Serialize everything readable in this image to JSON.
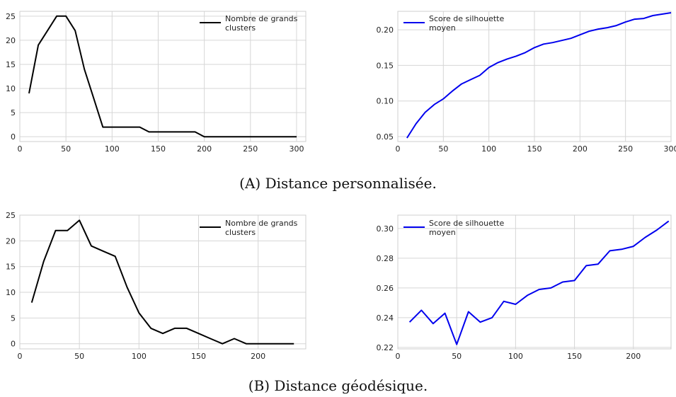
{
  "captions": {
    "a": {
      "tag": "(A)",
      "text": " Distance personnalisée."
    },
    "b": {
      "tag": "(B)",
      "text": " Distance géodésique."
    }
  },
  "chart_data": [
    {
      "type": "line",
      "panel": "A-left",
      "x": [
        10,
        20,
        30,
        40,
        50,
        60,
        70,
        80,
        90,
        100,
        110,
        120,
        130,
        140,
        150,
        160,
        170,
        180,
        190,
        200,
        210,
        220,
        230,
        240,
        250,
        260,
        270,
        280,
        290,
        300
      ],
      "series": [
        {
          "name": "Nombre de grands clusters",
          "color": "#000000",
          "values": [
            9,
            19,
            22,
            25,
            25,
            22,
            14,
            8,
            2,
            2,
            2,
            2,
            2,
            1,
            1,
            1,
            1,
            1,
            1,
            0,
            0,
            0,
            0,
            0,
            0,
            0,
            0,
            0,
            0,
            0
          ]
        }
      ],
      "xlim": [
        0,
        310
      ],
      "ylim": [
        -1,
        26
      ],
      "xticks": [
        0,
        50,
        100,
        150,
        200,
        250,
        300
      ],
      "yticks": [
        0,
        5,
        10,
        15,
        20,
        25
      ],
      "ytick_decimals": 0,
      "legend": "top-right",
      "grid": true
    },
    {
      "type": "line",
      "panel": "A-right",
      "x": [
        10,
        20,
        30,
        40,
        50,
        60,
        70,
        80,
        90,
        100,
        110,
        120,
        130,
        140,
        150,
        160,
        170,
        180,
        190,
        200,
        210,
        220,
        230,
        240,
        250,
        260,
        270,
        280,
        290,
        300
      ],
      "series": [
        {
          "name": "Score de silhouette moyen",
          "color": "#0000ee",
          "values": [
            0.048,
            0.068,
            0.084,
            0.095,
            0.103,
            0.114,
            0.124,
            0.13,
            0.136,
            0.147,
            0.154,
            0.159,
            0.163,
            0.168,
            0.175,
            0.18,
            0.182,
            0.185,
            0.188,
            0.193,
            0.198,
            0.201,
            0.203,
            0.206,
            0.211,
            0.215,
            0.216,
            0.22,
            0.222,
            0.224
          ]
        }
      ],
      "xlim": [
        0,
        300
      ],
      "ylim": [
        0.043,
        0.226
      ],
      "xticks": [
        0,
        50,
        100,
        150,
        200,
        250,
        300
      ],
      "xtick_labels": [
        "0",
        "50",
        "100",
        "150",
        "200",
        "250",
        "300"
      ],
      "yticks": [
        0.05,
        0.1,
        0.15,
        0.2
      ],
      "ytick_decimals": 2,
      "legend": "top-left",
      "grid": true
    },
    {
      "type": "line",
      "panel": "B-left",
      "x": [
        10,
        20,
        30,
        40,
        50,
        60,
        70,
        80,
        90,
        100,
        110,
        120,
        130,
        140,
        150,
        160,
        170,
        180,
        190,
        200,
        210,
        220,
        230
      ],
      "series": [
        {
          "name": "Nombre de grands clusters",
          "color": "#000000",
          "values": [
            8,
            16,
            22,
            22,
            24,
            19,
            18,
            17,
            11,
            6,
            3,
            2,
            3,
            3,
            2,
            1,
            0,
            1,
            0,
            0,
            0,
            0,
            0
          ]
        }
      ],
      "xlim": [
        0,
        240
      ],
      "ylim": [
        -1,
        25
      ],
      "xticks": [
        0,
        50,
        100,
        150,
        200
      ],
      "yticks": [
        0,
        5,
        10,
        15,
        20,
        25
      ],
      "ytick_decimals": 0,
      "legend": "top-right",
      "grid": true
    },
    {
      "type": "line",
      "panel": "B-right",
      "x": [
        10,
        20,
        30,
        40,
        50,
        60,
        70,
        80,
        90,
        100,
        110,
        120,
        130,
        140,
        150,
        160,
        170,
        180,
        190,
        200,
        210,
        220,
        230
      ],
      "series": [
        {
          "name": "Score de silhouette moyen",
          "color": "#0000ee",
          "values": [
            0.237,
            0.245,
            0.236,
            0.243,
            0.222,
            0.244,
            0.237,
            0.24,
            0.251,
            0.249,
            0.255,
            0.259,
            0.26,
            0.264,
            0.265,
            0.275,
            0.276,
            0.285,
            0.286,
            0.288,
            0.294,
            0.299,
            0.305
          ]
        }
      ],
      "xlim": [
        0,
        232
      ],
      "ylim": [
        0.219,
        0.309
      ],
      "xticks": [
        0,
        50,
        100,
        150,
        200
      ],
      "yticks": [
        0.22,
        0.24,
        0.26,
        0.28,
        0.3
      ],
      "ytick_decimals": 2,
      "legend": "top-left",
      "grid": true
    }
  ]
}
